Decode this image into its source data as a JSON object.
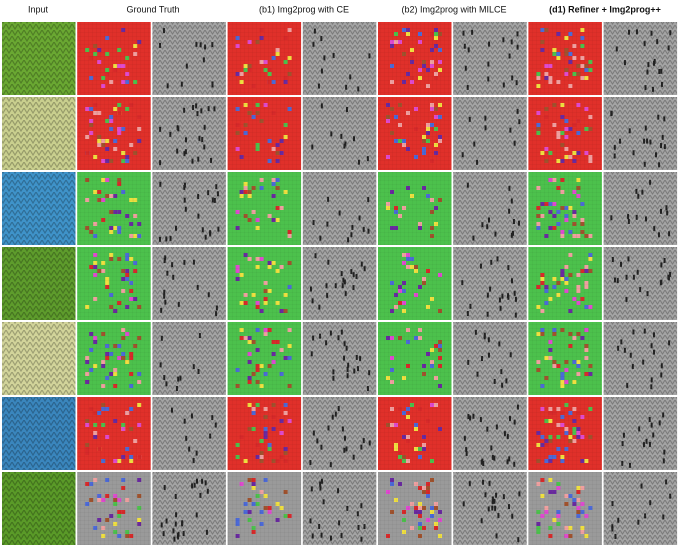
{
  "header": {
    "columns": [
      "Input",
      "Ground Truth",
      "(b1) Img2prog with CE",
      "(b2) Img2prog with MILCE",
      "(d1) Refiner + Img2prog++"
    ]
  }
}
